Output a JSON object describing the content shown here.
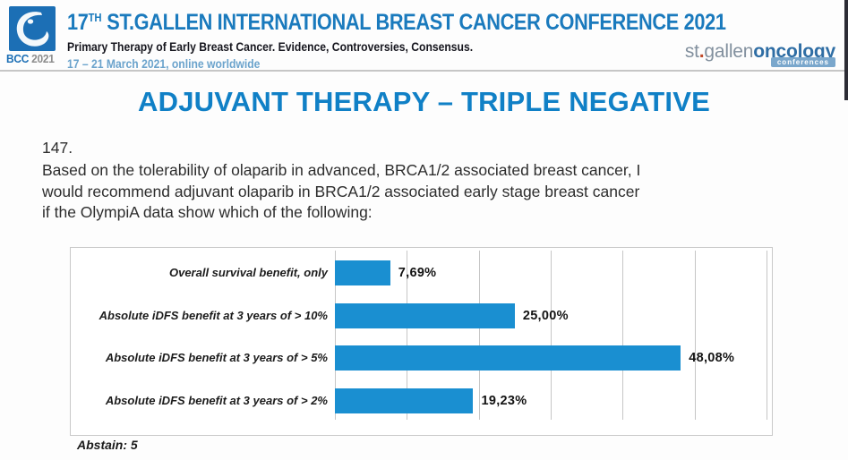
{
  "header": {
    "logo_badge": {
      "bcc": "BCC",
      "year": "2021"
    },
    "title_num": "17",
    "title_sup": "TH",
    "title_rest": " ST.GALLEN INTERNATIONAL BREAST CANCER CONFERENCE 2021",
    "subtitle": "Primary Therapy of Early Breast Cancer. Evidence, Controversies, Consensus.",
    "dates": "17 – 21 March 2021, online worldwide",
    "brand": {
      "st": "st",
      "dot": ".",
      "gallen": "gallen",
      "oncology": "oncology",
      "chip": "conferences"
    }
  },
  "main": {
    "title": "ADJUVANT THERAPY – TRIPLE NEGATIVE",
    "question_number": "147.",
    "question_lines": [
      "Based on the tolerability of olaparib in advanced, BRCA1/2 associated breast cancer, I",
      "would recommend adjuvant olaparib in BRCA1/2 associated early stage breast cancer",
      "if the OlympiA data show which of the following:"
    ],
    "abstain": "Abstain: 5"
  },
  "chart_data": {
    "type": "bar",
    "orientation": "horizontal",
    "title": "",
    "xlabel": "",
    "ylabel": "",
    "categories": [
      "Overall survival benefit, only",
      "Absolute iDFS benefit at 3 years of > 10%",
      "Absolute iDFS benefit at 3 years of > 5%",
      "Absolute iDFS benefit at 3 years of > 2%"
    ],
    "values": [
      7.69,
      25.0,
      48.08,
      19.23
    ],
    "value_labels": [
      "7,69%",
      "25,00%",
      "48,08%",
      "19,23%"
    ],
    "xlim": [
      0,
      60
    ],
    "grid_step": 10,
    "grid": true,
    "legend": false,
    "bar_color": "#1a8fd1",
    "annotation": "Abstain: 5"
  },
  "colors": {
    "bar_blue": "#1a8fd1",
    "title_blue": "#1080c6",
    "header_blue": "#1a7abd",
    "dates_blue": "#6ba3cc",
    "logo_blue": "#1c6fb5",
    "brand_gray": "#82909e",
    "brand_oncology_blue": "#2e6da4",
    "grid_gray": "#c6c6c6"
  }
}
